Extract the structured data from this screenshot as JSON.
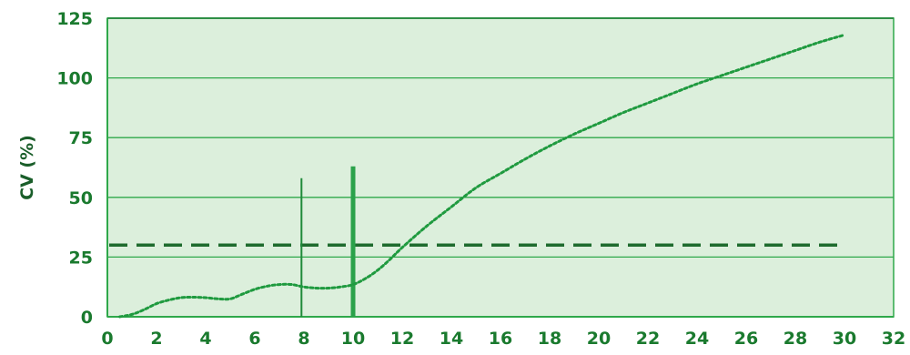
{
  "chart_data": {
    "type": "line",
    "title": "",
    "xlabel": "",
    "ylabel": "CV (%)",
    "xlim": [
      0,
      32
    ],
    "ylim": [
      0,
      125
    ],
    "x_ticks": [
      0,
      2,
      4,
      6,
      8,
      10,
      12,
      14,
      16,
      18,
      20,
      22,
      24,
      26,
      28,
      30,
      32
    ],
    "y_ticks": [
      0,
      25,
      50,
      75,
      100,
      125
    ],
    "grid": "horizontal",
    "legend": "none",
    "series": [
      {
        "style": "dotted",
        "color": "#1f9a3f",
        "points": [
          [
            0.5,
            0
          ],
          [
            1,
            1
          ],
          [
            1.5,
            3
          ],
          [
            2,
            5.5
          ],
          [
            2.5,
            7
          ],
          [
            3,
            8
          ],
          [
            3.5,
            8.2
          ],
          [
            4,
            8
          ],
          [
            4.5,
            7.5
          ],
          [
            5,
            7.5
          ],
          [
            5.5,
            9.5
          ],
          [
            6,
            11.5
          ],
          [
            6.5,
            12.8
          ],
          [
            7,
            13.5
          ],
          [
            7.5,
            13.5
          ],
          [
            8,
            12.5
          ],
          [
            8.5,
            12
          ],
          [
            9,
            12
          ],
          [
            9.5,
            12.5
          ],
          [
            10,
            13.5
          ],
          [
            10.5,
            16
          ],
          [
            11,
            19.5
          ],
          [
            11.5,
            24
          ],
          [
            12,
            29
          ],
          [
            13,
            38
          ],
          [
            14,
            46
          ],
          [
            15,
            54
          ],
          [
            16,
            60
          ],
          [
            17,
            66
          ],
          [
            18,
            71.5
          ],
          [
            19,
            76.5
          ],
          [
            20,
            81
          ],
          [
            21,
            85.5
          ],
          [
            22,
            89.5
          ],
          [
            23,
            93.5
          ],
          [
            24,
            97.5
          ],
          [
            25,
            101
          ],
          [
            26,
            104.5
          ],
          [
            27,
            108
          ],
          [
            28,
            111.5
          ],
          [
            29,
            115
          ],
          [
            30,
            118
          ]
        ]
      }
    ],
    "reference_lines": [
      {
        "orientation": "horizontal",
        "value": 30,
        "x_range": [
          0,
          30
        ],
        "style": "dashed",
        "color": "#1e6b2e"
      },
      {
        "orientation": "vertical",
        "value": 7.9,
        "y_range": [
          0,
          58
        ],
        "style": "solid-thin",
        "color": "#1f8a3a"
      },
      {
        "orientation": "vertical",
        "value": 10,
        "y_range": [
          0,
          63
        ],
        "style": "solid-thick",
        "color": "#2aa24a"
      }
    ],
    "colors": {
      "plot_background": "#dcefdc",
      "grid": "#2fa84a",
      "tick_text": "#1a7a2e",
      "axis_title": "#1a5e2a"
    }
  }
}
